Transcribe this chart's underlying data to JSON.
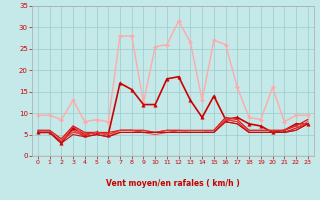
{
  "xlabel": "Vent moyen/en rafales ( km/h )",
  "xlim": [
    -0.5,
    23.5
  ],
  "ylim": [
    0,
    35
  ],
  "yticks": [
    0,
    5,
    10,
    15,
    20,
    25,
    30,
    35
  ],
  "xticks": [
    0,
    1,
    2,
    3,
    4,
    5,
    6,
    7,
    8,
    9,
    10,
    11,
    12,
    13,
    14,
    15,
    16,
    17,
    18,
    19,
    20,
    21,
    22,
    23
  ],
  "background_color": "#c5e8e8",
  "grid_color": "#99cccc",
  "series": [
    {
      "y": [
        9.5,
        9.5,
        8.5,
        13,
        8,
        8.5,
        8,
        28,
        28,
        12.5,
        25.5,
        26,
        31.5,
        26.5,
        13,
        27,
        26,
        16,
        9,
        8.5,
        16,
        8,
        9.5,
        9.5
      ],
      "color": "#ffaaaa",
      "lw": 1.0,
      "marker": "D",
      "ms": 2.0
    },
    {
      "y": [
        5.5,
        5.5,
        3,
        6.5,
        5,
        5.5,
        5,
        17,
        15.5,
        12,
        12,
        18,
        18.5,
        13,
        9,
        14,
        8.5,
        9,
        7.5,
        7,
        5.5,
        6,
        7.5,
        7.5
      ],
      "color": "#cc0000",
      "lw": 1.2,
      "marker": "^",
      "ms": 2.5
    },
    {
      "y": [
        5.5,
        5.5,
        3.5,
        7,
        4.5,
        5,
        4.5,
        6,
        6,
        5.5,
        5,
        5.5,
        5.5,
        5.5,
        5.5,
        5.5,
        8.5,
        8,
        5.5,
        5.5,
        5.5,
        5.5,
        6.5,
        8
      ],
      "color": "#ff4444",
      "lw": 0.8,
      "marker": null,
      "ms": 0
    },
    {
      "y": [
        5.5,
        5.5,
        3.5,
        6,
        4.5,
        5,
        4.5,
        5.5,
        5.5,
        5.5,
        5.5,
        5.5,
        5.5,
        5.5,
        5.5,
        5.5,
        8,
        7.5,
        5.5,
        5.5,
        5.5,
        5.5,
        6.5,
        7.5
      ],
      "color": "#dd2222",
      "lw": 0.8,
      "marker": null,
      "ms": 0
    },
    {
      "y": [
        6,
        6,
        4,
        7,
        5.5,
        5.5,
        5,
        6,
        6,
        6,
        5.5,
        6,
        6,
        5.5,
        5.5,
        6,
        9,
        8.5,
        6,
        6,
        6,
        6,
        7,
        8.5
      ],
      "color": "#ff6666",
      "lw": 0.8,
      "marker": null,
      "ms": 0
    },
    {
      "y": [
        6,
        6,
        4,
        7,
        5.5,
        5.5,
        5.5,
        6,
        6,
        6,
        5.5,
        6,
        6,
        6,
        6,
        6,
        9,
        8.5,
        6,
        6,
        6,
        6,
        7,
        8.5
      ],
      "color": "#cc2222",
      "lw": 0.8,
      "marker": null,
      "ms": 0
    },
    {
      "y": [
        5.5,
        5.5,
        3.5,
        5.5,
        5,
        5.5,
        5,
        6,
        6,
        5.5,
        5.5,
        6,
        5.5,
        5.5,
        5.5,
        5.5,
        8.5,
        8,
        5.5,
        5.5,
        5.5,
        5.5,
        6,
        7.5
      ],
      "color": "#ee3333",
      "lw": 0.8,
      "marker": null,
      "ms": 0
    },
    {
      "y": [
        5.5,
        5.5,
        3,
        5,
        4.5,
        5,
        4.5,
        5.5,
        5.5,
        5.5,
        5.5,
        5.5,
        5.5,
        5.5,
        5.5,
        5.5,
        8,
        7.5,
        5.5,
        5.5,
        5.5,
        5.5,
        6,
        7.5
      ],
      "color": "#bb1111",
      "lw": 0.8,
      "marker": null,
      "ms": 0
    }
  ],
  "wind_dirs": [
    225,
    225,
    225,
    200,
    215,
    215,
    225,
    215,
    225,
    225,
    215,
    220,
    225,
    225,
    215,
    200,
    215,
    215,
    215,
    215,
    225,
    45,
    0,
    0
  ]
}
